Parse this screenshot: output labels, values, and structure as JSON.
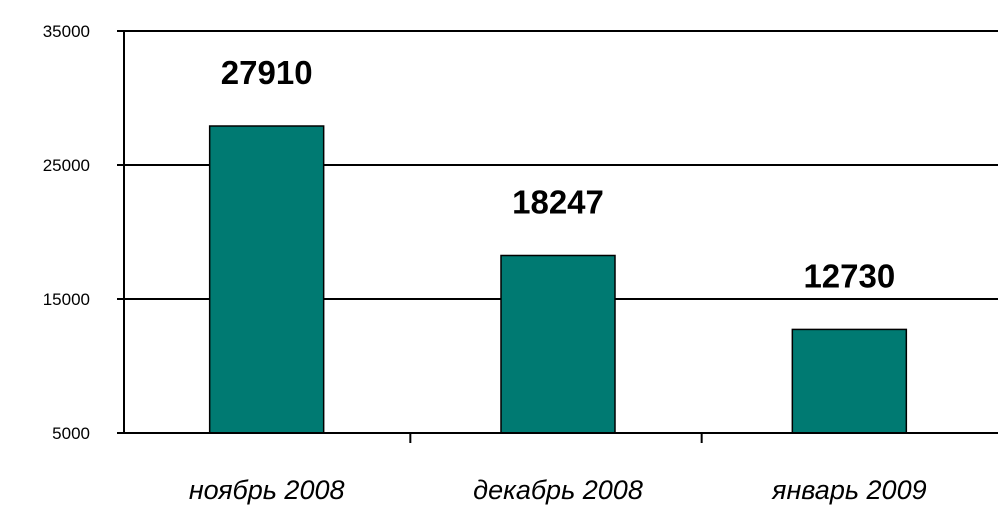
{
  "chart_data": {
    "type": "bar",
    "categories": [
      "ноябрь 2008",
      "декабрь 2008",
      "январь 2009"
    ],
    "values": [
      27910,
      18247,
      12730
    ],
    "data_labels": [
      "27910",
      "18247",
      "12730"
    ],
    "y_ticks": [
      "5000",
      "15000",
      "25000",
      "35000"
    ],
    "y_tick_values": [
      5000,
      15000,
      25000,
      35000
    ],
    "ylim": [
      5000,
      35000
    ],
    "grid": true,
    "title": "",
    "xlabel": "",
    "ylabel": "",
    "colors": {
      "bar": "#007a72",
      "bar_edge": "#000000",
      "axis": "#000000"
    }
  }
}
